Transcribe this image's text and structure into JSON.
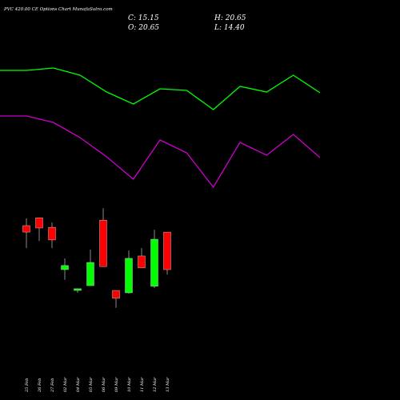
{
  "header": {
    "title": "PVC 420.00 CE Options Chart MunafaSutra.com",
    "close": "C: 15.15",
    "high": "H: 20.65",
    "open": "O: 20.65",
    "low": "L: 14.40"
  },
  "chart_data": [
    {
      "type": "line",
      "ylim": [
        0,
        100
      ],
      "series": [
        {
          "color": "#00ff00",
          "values": [
            81,
            81,
            82.5,
            78,
            67.5,
            60,
            69.5,
            68.5,
            56.5,
            71,
            67.5,
            78,
            67
          ]
        },
        {
          "color": "#cc00cc",
          "values": [
            52.5,
            52.5,
            48.5,
            39,
            27,
            13,
            37.5,
            29.5,
            8,
            36,
            28,
            41,
            26.5
          ]
        }
      ]
    },
    {
      "type": "candlestick",
      "ylim": [
        8,
        25
      ],
      "up_color": "#00ff00",
      "down_color": "#ff0000",
      "categories": [
        "25 Feb",
        "26 Feb",
        "27 Feb",
        "02 Mar",
        "04 Mar",
        "05 Mar",
        "06 Mar",
        "09 Mar",
        "10 Mar",
        "11 Mar",
        "12 Mar",
        "13 Mar"
      ],
      "open": [
        21.6,
        22.75,
        21.35,
        15.15,
        12.1,
        12.8,
        22.4,
        12.1,
        11.75,
        17.15,
        12.7,
        20.65
      ],
      "high": [
        22.65,
        22.75,
        22.05,
        16.8,
        12.35,
        18.1,
        24.15,
        12.1,
        17.95,
        18.3,
        21.0,
        20.65
      ],
      "low": [
        18.3,
        19.35,
        18.3,
        13.65,
        11.75,
        12.8,
        15.6,
        9.55,
        11.65,
        15.4,
        12.45,
        14.4
      ],
      "close": [
        20.65,
        21.25,
        19.5,
        15.75,
        12.35,
        16.2,
        15.6,
        10.95,
        16.8,
        15.4,
        19.6,
        15.15
      ]
    }
  ]
}
